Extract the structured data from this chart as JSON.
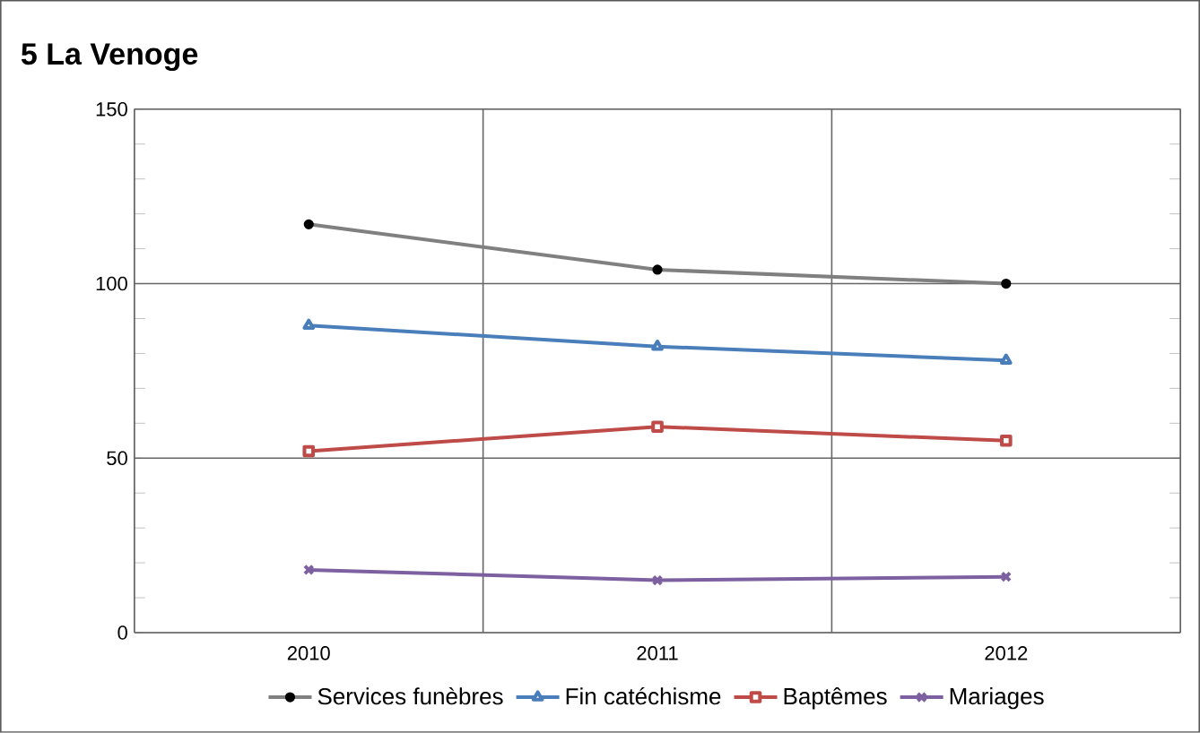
{
  "chart_data": {
    "type": "line",
    "title": "5 La Venoge",
    "categories": [
      "2010",
      "2011",
      "2012"
    ],
    "series": [
      {
        "name": "Services funèbres",
        "color": "#808080",
        "marker": "circle",
        "values": [
          117,
          104,
          100
        ]
      },
      {
        "name": "Fin catéchisme",
        "color": "#4a7ebb",
        "marker": "triangle",
        "values": [
          88,
          82,
          78
        ]
      },
      {
        "name": "Baptêmes",
        "color": "#be4b48",
        "marker": "square",
        "values": [
          52,
          59,
          55
        ]
      },
      {
        "name": "Mariages",
        "color": "#7d60a0",
        "marker": "cross",
        "values": [
          18,
          15,
          16
        ]
      }
    ],
    "ylim": [
      0,
      150
    ],
    "yticks": [
      0,
      50,
      100,
      150
    ],
    "grid": true,
    "legend": "bottom"
  }
}
